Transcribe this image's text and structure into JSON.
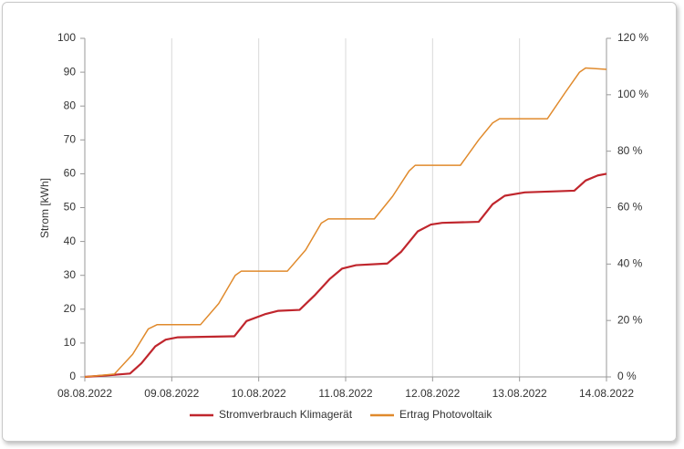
{
  "chart_data": {
    "type": "line",
    "ylabel": "Strom [kWh]",
    "xlim": [
      0,
      6
    ],
    "xticks": [
      {
        "value": 0,
        "label": "08.08.2022"
      },
      {
        "value": 1,
        "label": "09.08.2022"
      },
      {
        "value": 2,
        "label": "10.08.2022"
      },
      {
        "value": 3,
        "label": "11.08.2022"
      },
      {
        "value": 4,
        "label": "12.08.2022"
      },
      {
        "value": 5,
        "label": "13.08.2022"
      },
      {
        "value": 6,
        "label": "14.08.2022"
      }
    ],
    "ylim": [
      0,
      100
    ],
    "yticks": [
      0,
      10,
      20,
      30,
      40,
      50,
      60,
      70,
      80,
      90,
      100
    ],
    "y2lim": [
      0,
      120
    ],
    "y2ticks": [
      {
        "value": 0,
        "label": "0 %"
      },
      {
        "value": 20,
        "label": "20 %"
      },
      {
        "value": 40,
        "label": "40 %"
      },
      {
        "value": 60,
        "label": "60 %"
      },
      {
        "value": 80,
        "label": "80 %"
      },
      {
        "value": 100,
        "label": "100 %"
      },
      {
        "value": 120,
        "label": "120 %"
      }
    ],
    "xgrid": true,
    "legend": "bottom",
    "series": [
      {
        "name": "Stromverbrauch Klimagerät",
        "color": "#c0262d",
        "x": [
          0,
          0.28,
          0.52,
          0.65,
          0.81,
          0.93,
          1.07,
          1.72,
          1.86,
          2.07,
          2.22,
          2.47,
          2.64,
          2.82,
          2.96,
          3.12,
          3.48,
          3.64,
          3.83,
          3.98,
          4.11,
          4.53,
          4.69,
          4.83,
          5.06,
          5.63,
          5.76,
          5.9,
          6.0
        ],
        "values": [
          0,
          0.5,
          1,
          4,
          9,
          11,
          11.7,
          12,
          16.5,
          18.5,
          19.5,
          19.8,
          24,
          29,
          32,
          33,
          33.5,
          37,
          43,
          45,
          45.5,
          45.8,
          51,
          53.5,
          54.5,
          55,
          58,
          59.5,
          60
        ]
      },
      {
        "name": "Ertrag Photovoltaik",
        "color": "#e08a2c",
        "axis": "y2",
        "x": [
          0,
          0.34,
          0.55,
          0.73,
          0.83,
          1.33,
          1.54,
          1.73,
          1.8,
          2.33,
          2.54,
          2.72,
          2.8,
          3.33,
          3.54,
          3.73,
          3.8,
          4.32,
          4.53,
          4.69,
          4.77,
          5.32,
          5.53,
          5.69,
          5.76,
          6.0
        ],
        "values": [
          0,
          1,
          8,
          17,
          18.5,
          18.5,
          26,
          36,
          37.5,
          37.5,
          45,
          54.5,
          56,
          56,
          64,
          73,
          75,
          75,
          84,
          90,
          91.5,
          91.5,
          101,
          108,
          109.5,
          109
        ]
      }
    ]
  }
}
